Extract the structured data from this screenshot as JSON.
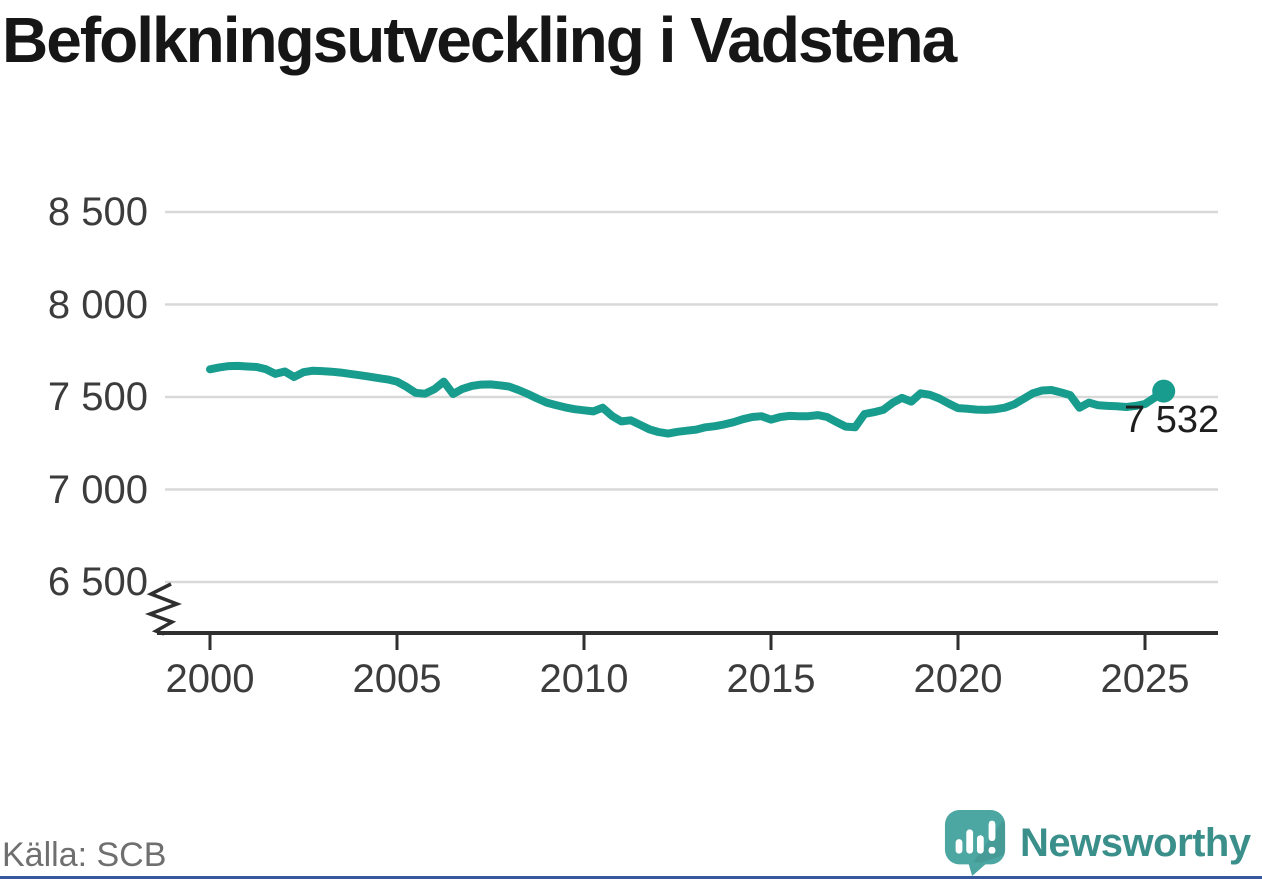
{
  "title": "Befolkningsutveckling i Vadstena",
  "source": "Källa: SCB",
  "branding": {
    "name": "Newsworthy"
  },
  "colors": {
    "line": "#189c8d",
    "grid": "#d9d9d9",
    "axis": "#2f2f2f",
    "tick_text": "#3c3c3c",
    "title_text": "#161616",
    "end_label_text": "#1e1e1e",
    "source_text": "#6f6f6f",
    "logo_mark": "#4ca6a2",
    "logo_text": "#3a8f8b",
    "bottom_bar": "#35589e"
  },
  "chart_data": {
    "type": "line",
    "title": "Befolkningsutveckling i Vadstena",
    "xlabel": "",
    "ylabel": "",
    "grid": true,
    "legend": false,
    "axis_break": true,
    "ylim": [
      6500,
      8500
    ],
    "xlim": [
      2000,
      2025.5
    ],
    "x_ticks": [
      2000,
      2005,
      2010,
      2015,
      2020,
      2025
    ],
    "y_ticks": [
      {
        "value": 8500,
        "label": "8 500"
      },
      {
        "value": 8000,
        "label": "8 000"
      },
      {
        "value": 7500,
        "label": "7 500"
      },
      {
        "value": 7000,
        "label": "7 000"
      },
      {
        "value": 6500,
        "label": "6 500"
      }
    ],
    "end_label": "7 532",
    "series": [
      {
        "name": "Befolkning",
        "color": "#189c8d",
        "points": [
          [
            2000.0,
            7650
          ],
          [
            2000.25,
            7660
          ],
          [
            2000.5,
            7667
          ],
          [
            2000.75,
            7668
          ],
          [
            2001.0,
            7665
          ],
          [
            2001.25,
            7662
          ],
          [
            2001.5,
            7650
          ],
          [
            2001.75,
            7625
          ],
          [
            2002.0,
            7638
          ],
          [
            2002.25,
            7608
          ],
          [
            2002.5,
            7634
          ],
          [
            2002.75,
            7642
          ],
          [
            2003.0,
            7640
          ],
          [
            2003.25,
            7637
          ],
          [
            2003.5,
            7632
          ],
          [
            2003.75,
            7625
          ],
          [
            2004.0,
            7618
          ],
          [
            2004.25,
            7610
          ],
          [
            2004.5,
            7602
          ],
          [
            2004.75,
            7595
          ],
          [
            2005.0,
            7583
          ],
          [
            2005.25,
            7555
          ],
          [
            2005.5,
            7522
          ],
          [
            2005.75,
            7518
          ],
          [
            2006.0,
            7542
          ],
          [
            2006.25,
            7583
          ],
          [
            2006.5,
            7516
          ],
          [
            2006.75,
            7544
          ],
          [
            2007.0,
            7560
          ],
          [
            2007.25,
            7567
          ],
          [
            2007.5,
            7568
          ],
          [
            2007.75,
            7563
          ],
          [
            2008.0,
            7556
          ],
          [
            2008.25,
            7538
          ],
          [
            2008.5,
            7516
          ],
          [
            2008.75,
            7492
          ],
          [
            2009.0,
            7470
          ],
          [
            2009.25,
            7456
          ],
          [
            2009.5,
            7444
          ],
          [
            2009.75,
            7434
          ],
          [
            2010.0,
            7428
          ],
          [
            2010.25,
            7422
          ],
          [
            2010.5,
            7442
          ],
          [
            2010.75,
            7398
          ],
          [
            2011.0,
            7368
          ],
          [
            2011.25,
            7374
          ],
          [
            2011.5,
            7350
          ],
          [
            2011.75,
            7325
          ],
          [
            2012.0,
            7310
          ],
          [
            2012.25,
            7302
          ],
          [
            2012.5,
            7312
          ],
          [
            2012.75,
            7318
          ],
          [
            2013.0,
            7324
          ],
          [
            2013.25,
            7336
          ],
          [
            2013.5,
            7342
          ],
          [
            2013.75,
            7352
          ],
          [
            2014.0,
            7364
          ],
          [
            2014.25,
            7380
          ],
          [
            2014.5,
            7392
          ],
          [
            2014.75,
            7396
          ],
          [
            2015.0,
            7378
          ],
          [
            2015.25,
            7392
          ],
          [
            2015.5,
            7398
          ],
          [
            2015.75,
            7396
          ],
          [
            2016.0,
            7396
          ],
          [
            2016.25,
            7402
          ],
          [
            2016.5,
            7392
          ],
          [
            2016.75,
            7365
          ],
          [
            2017.0,
            7340
          ],
          [
            2017.25,
            7336
          ],
          [
            2017.5,
            7408
          ],
          [
            2017.75,
            7418
          ],
          [
            2018.0,
            7430
          ],
          [
            2018.25,
            7468
          ],
          [
            2018.5,
            7495
          ],
          [
            2018.75,
            7475
          ],
          [
            2019.0,
            7520
          ],
          [
            2019.25,
            7512
          ],
          [
            2019.5,
            7492
          ],
          [
            2019.75,
            7465
          ],
          [
            2020.0,
            7440
          ],
          [
            2020.25,
            7436
          ],
          [
            2020.5,
            7432
          ],
          [
            2020.75,
            7430
          ],
          [
            2021.0,
            7434
          ],
          [
            2021.25,
            7442
          ],
          [
            2021.5,
            7460
          ],
          [
            2021.75,
            7490
          ],
          [
            2022.0,
            7520
          ],
          [
            2022.25,
            7535
          ],
          [
            2022.5,
            7538
          ],
          [
            2022.75,
            7525
          ],
          [
            2023.0,
            7510
          ],
          [
            2023.25,
            7442
          ],
          [
            2023.5,
            7470
          ],
          [
            2023.75,
            7455
          ],
          [
            2024.0,
            7452
          ],
          [
            2024.25,
            7450
          ],
          [
            2024.5,
            7446
          ],
          [
            2024.75,
            7452
          ],
          [
            2025.0,
            7462
          ],
          [
            2025.25,
            7495
          ],
          [
            2025.5,
            7532
          ]
        ]
      }
    ]
  }
}
